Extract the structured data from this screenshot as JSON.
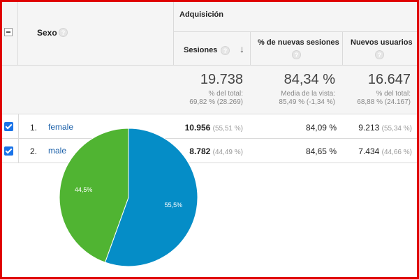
{
  "header": {
    "dimension_label": "Sexo",
    "group_label": "Adquisición",
    "columns": [
      {
        "label": "Sesiones",
        "sorted": true
      },
      {
        "label": "% de nuevas sesiones"
      },
      {
        "label": "Nuevos usuarios"
      }
    ],
    "help_glyph": "?"
  },
  "totals": [
    {
      "value": "19.738",
      "sub1": "% del total:",
      "sub2": "69,82 % (28.269)"
    },
    {
      "value": "84,34 %",
      "sub1": "Media de la vista:",
      "sub2": "85,49 % (-1,34 %)"
    },
    {
      "value": "16.647",
      "sub1": "% del total:",
      "sub2": "68,88 % (24.167)"
    }
  ],
  "rows": [
    {
      "index": "1.",
      "dimension": "female",
      "sessions": "10.956",
      "sessions_pct": "(55,51 %)",
      "new_sessions_pct": "84,09 %",
      "new_users": "9.213",
      "new_users_pct": "(55,34 %)",
      "checked": true
    },
    {
      "index": "2.",
      "dimension": "male",
      "sessions": "8.782",
      "sessions_pct": "(44,49 %)",
      "new_sessions_pct": "84,65 %",
      "new_users": "7.434",
      "new_users_pct": "(44,66 %)",
      "checked": true
    }
  ],
  "chart_data": {
    "type": "pie",
    "categories": [
      "female",
      "male"
    ],
    "values": [
      55.5,
      44.5
    ],
    "labels": [
      "55,5%",
      "44,5%"
    ],
    "colors": [
      "#058dc7",
      "#50b432"
    ]
  },
  "colors": {
    "frame": "#e00000",
    "link": "#1a5fa8",
    "checkbox": "#1a73e8"
  }
}
